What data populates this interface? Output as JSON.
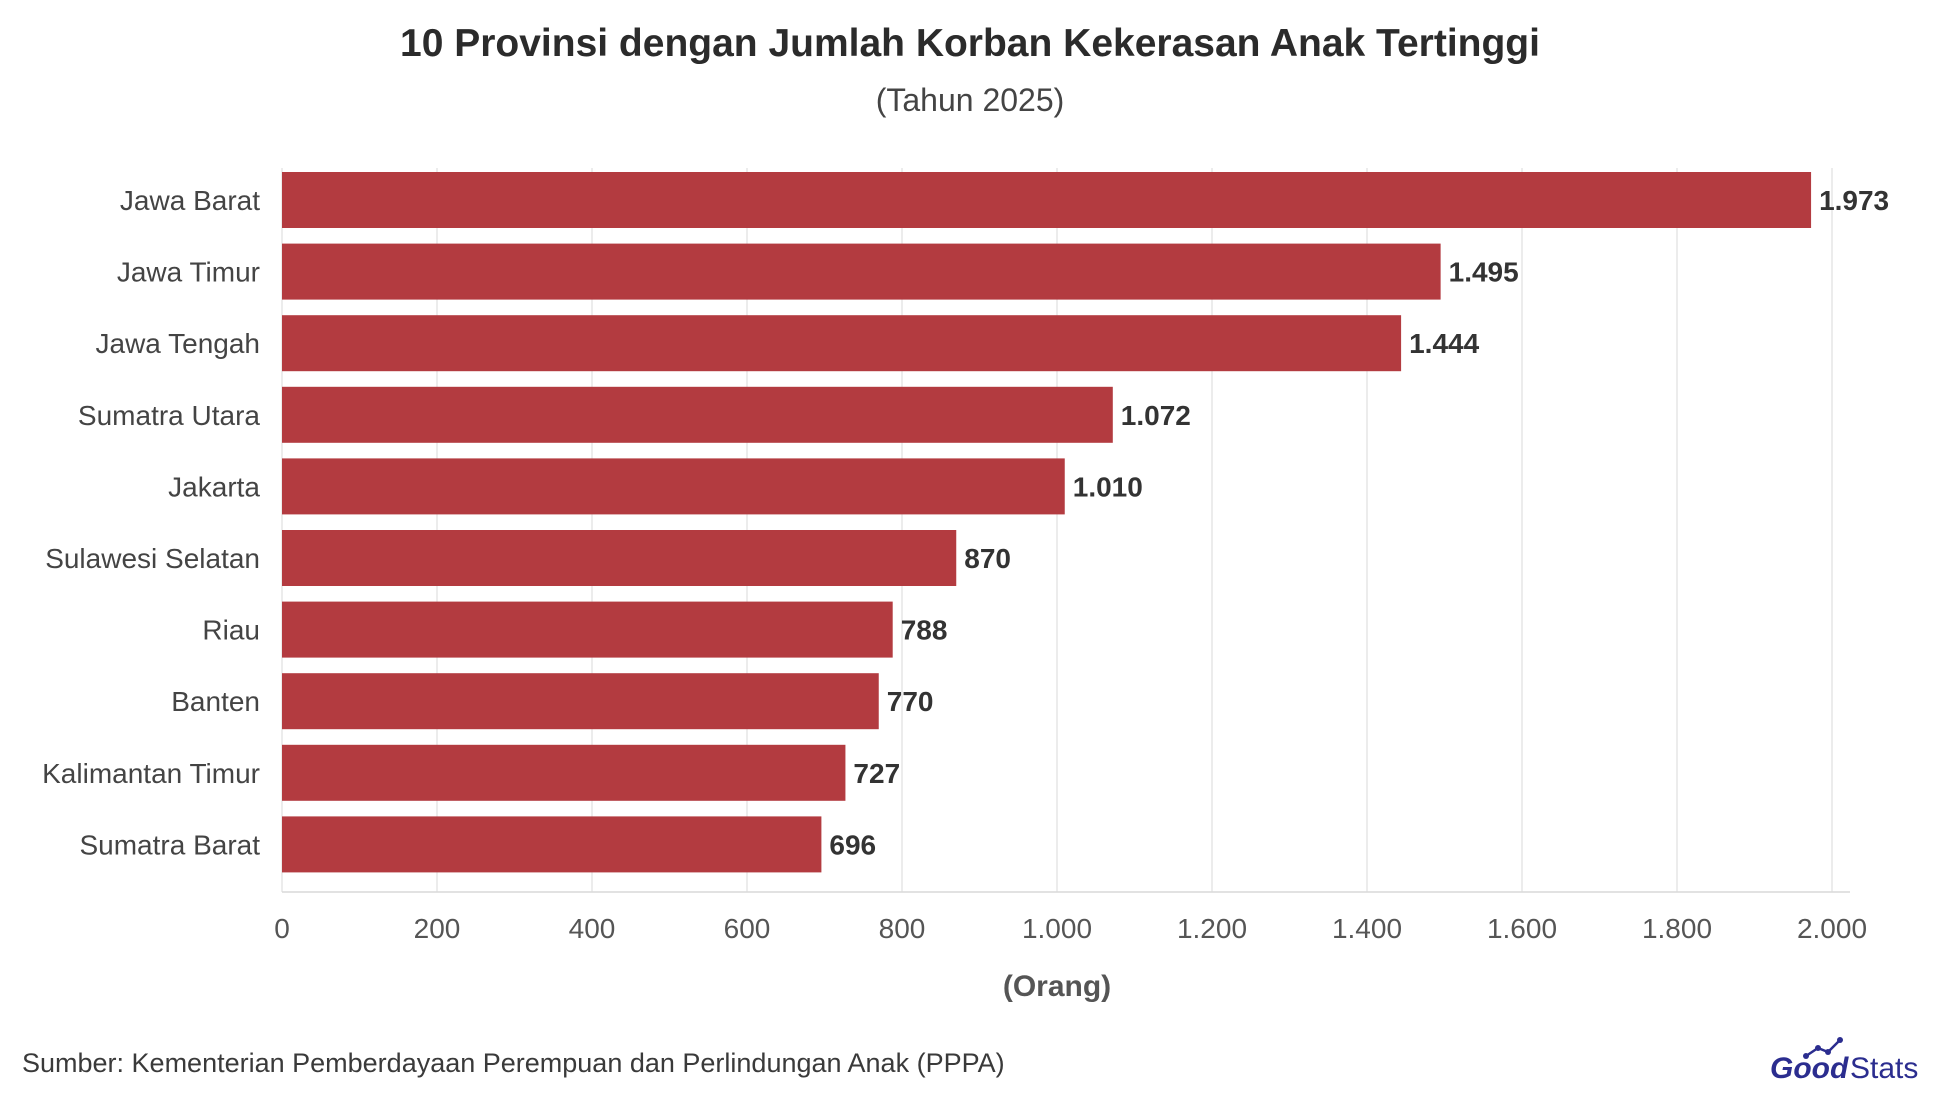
{
  "title": "10 Provinsi dengan Jumlah Korban Kekerasan Anak Tertinggi",
  "subtitle": "(Tahun 2025)",
  "source": "Sumber: Kementerian Pemberdayaan Perempuan dan Perlindungan Anak (PPPA)",
  "logo": {
    "text_good": "Good",
    "text_stats": "Stats"
  },
  "colors": {
    "bar": "#b33b40",
    "grid": "#e6e6e6",
    "logo_primary": "#2b2d8f"
  },
  "chart_data": {
    "type": "bar",
    "orientation": "horizontal",
    "categories": [
      "Jawa Barat",
      "Jawa Timur",
      "Jawa Tengah",
      "Sumatra Utara",
      "Jakarta",
      "Sulawesi Selatan",
      "Riau",
      "Banten",
      "Kalimantan Timur",
      "Sumatra Barat"
    ],
    "values": [
      1973,
      1495,
      1444,
      1072,
      1010,
      870,
      788,
      770,
      727,
      696
    ],
    "value_labels": [
      "1.973",
      "1.495",
      "1.444",
      "1.072",
      "1.010",
      "870",
      "788",
      "770",
      "727",
      "696"
    ],
    "xlabel": "(Orang)",
    "ylabel": "",
    "xlim": [
      0,
      2000
    ],
    "xticks": [
      0,
      200,
      400,
      600,
      800,
      1000,
      1200,
      1400,
      1600,
      1800,
      2000
    ],
    "xtick_labels": [
      "0",
      "200",
      "400",
      "600",
      "800",
      "1.000",
      "1.200",
      "1.400",
      "1.600",
      "1.800",
      "2.000"
    ],
    "grid": true,
    "legend": "none"
  }
}
